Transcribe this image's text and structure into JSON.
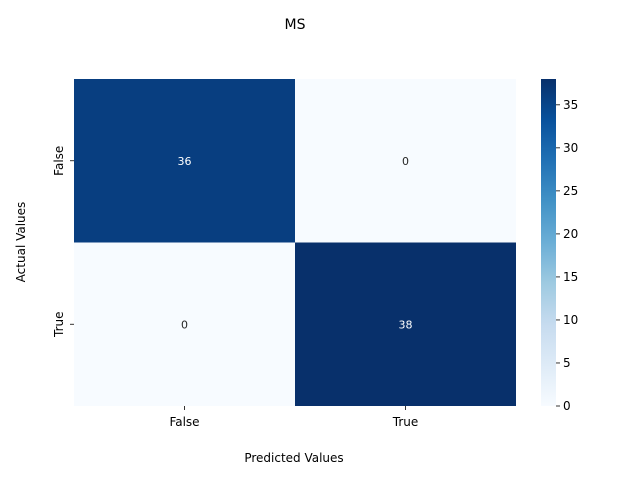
{
  "chart_data": {
    "type": "heatmap",
    "title": "MS",
    "xlabel": "Predicted Values",
    "ylabel": "Actual Values",
    "x_categories": [
      "False",
      "True"
    ],
    "y_categories": [
      "False",
      "True"
    ],
    "values": [
      [
        36,
        0
      ],
      [
        0,
        38
      ]
    ],
    "annotations": [
      [
        "36",
        "0"
      ],
      [
        "0",
        "38"
      ]
    ],
    "colormap": "Blues",
    "colorbar": {
      "range": [
        0,
        38
      ],
      "ticks": [
        0,
        5,
        10,
        15,
        20,
        25,
        30,
        35
      ]
    },
    "colors": {
      "low": "#f7fbff",
      "high": "#08306b",
      "annotation_on_dark": "#ffffff",
      "annotation_on_light": "#262626"
    }
  }
}
